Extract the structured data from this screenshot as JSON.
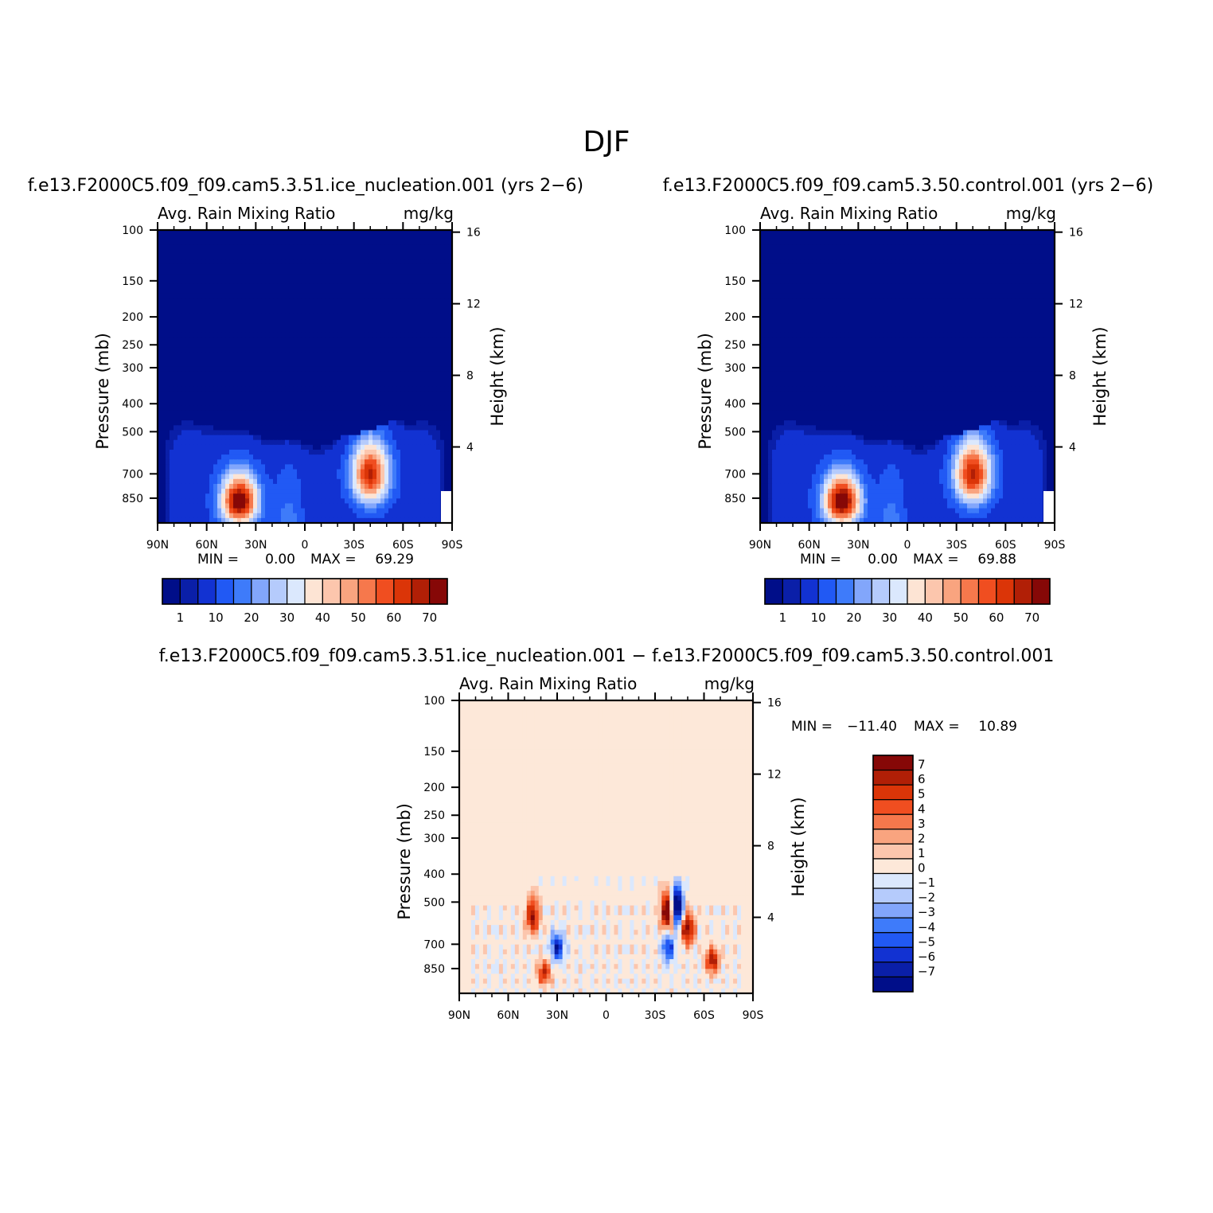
{
  "figure": {
    "title": "DJF"
  },
  "palettes": {
    "abs": [
      "#000e89",
      "#0a1fa8",
      "#1232d2",
      "#2159f4",
      "#3e7bfa",
      "#82a6fb",
      "#b5cbfc",
      "#dbe8fd",
      "#fde4d4",
      "#fcc6ad",
      "#f9a47f",
      "#f6784c",
      "#f04e20",
      "#db3508",
      "#b11f06",
      "#860807"
    ],
    "diff": [
      "#000e89",
      "#0a1fa8",
      "#1232d2",
      "#2159f4",
      "#3e7bfa",
      "#82a6fb",
      "#b5cbfc",
      "#dbe8fd",
      "#fde8d9",
      "#fcc6ad",
      "#f9a47f",
      "#f6784c",
      "#f04e20",
      "#db3508",
      "#b11f06",
      "#860807"
    ]
  },
  "chart_data": [
    {
      "type": "heatmap",
      "id": "p1",
      "run_title": "f.e13.F2000C5.f09_f09.cam5.3.51.ice_nucleation.001 (yrs 2−6)",
      "left_label": "Avg. Rain Mixing Ratio",
      "right_label": "mg/kg",
      "ylabel": "Pressure (mb)",
      "y2label": "Height (km)",
      "x_ticks": [
        "90N",
        "60N",
        "30N",
        "0",
        "30S",
        "60S",
        "90S"
      ],
      "y_ticks": [
        "100",
        "150",
        "200",
        "250",
        "300",
        "400",
        "500",
        "700",
        "850"
      ],
      "y2_ticks": [
        "16",
        "12",
        "8",
        "4"
      ],
      "stats": {
        "min_label": "MIN =",
        "min_value": "0.00",
        "max_label": "MAX =",
        "max_value": "69.29"
      },
      "colorbar": {
        "orientation": "horizontal",
        "labels": [
          "1",
          "10",
          "20",
          "30",
          "40",
          "50",
          "60",
          "70"
        ]
      },
      "peaks": [
        {
          "lat": 40,
          "pressure": 870,
          "value": 69.29
        },
        {
          "lat": -40,
          "pressure": 700,
          "value": 58
        }
      ]
    },
    {
      "type": "heatmap",
      "id": "p2",
      "run_title": "f.e13.F2000C5.f09_f09.cam5.3.50.control.001 (yrs 2−6)",
      "left_label": "Avg. Rain Mixing Ratio",
      "right_label": "mg/kg",
      "ylabel": "Pressure (mb)",
      "y2label": "Height (km)",
      "x_ticks": [
        "90N",
        "60N",
        "30N",
        "0",
        "30S",
        "60S",
        "90S"
      ],
      "y_ticks": [
        "100",
        "150",
        "200",
        "250",
        "300",
        "400",
        "500",
        "700",
        "850"
      ],
      "y2_ticks": [
        "16",
        "12",
        "8",
        "4"
      ],
      "stats": {
        "min_label": "MIN =",
        "min_value": "0.00",
        "max_label": "MAX =",
        "max_value": "69.88"
      },
      "colorbar": {
        "orientation": "horizontal",
        "labels": [
          "1",
          "10",
          "20",
          "30",
          "40",
          "50",
          "60",
          "70"
        ]
      },
      "peaks": [
        {
          "lat": 40,
          "pressure": 870,
          "value": 69.88
        },
        {
          "lat": -40,
          "pressure": 700,
          "value": 60
        }
      ]
    },
    {
      "type": "heatmap",
      "id": "p3",
      "run_title": "f.e13.F2000C5.f09_f09.cam5.3.51.ice_nucleation.001 − f.e13.F2000C5.f09_f09.cam5.3.50.control.001",
      "left_label": "Avg. Rain Mixing Ratio",
      "right_label": "mg/kg",
      "ylabel": "Pressure (mb)",
      "y2label": "Height (km)",
      "x_ticks": [
        "90N",
        "60N",
        "30N",
        "0",
        "30S",
        "60S",
        "90S"
      ],
      "y_ticks": [
        "100",
        "150",
        "200",
        "250",
        "300",
        "400",
        "500",
        "700",
        "850"
      ],
      "y2_ticks": [
        "16",
        "12",
        "8",
        "4"
      ],
      "stats": {
        "min_label": "MIN =",
        "min_value": "−11.40",
        "max_label": "MAX =",
        "max_value": "10.89"
      },
      "colorbar": {
        "orientation": "vertical",
        "labels": [
          "7",
          "6",
          "5",
          "4",
          "3",
          "2",
          "1",
          "0",
          "−1",
          "−2",
          "−3",
          "−4",
          "−5",
          "−6",
          "−7"
        ]
      },
      "peaks": [
        {
          "lat": 45,
          "pressure": 560,
          "value": 7
        },
        {
          "lat": 30,
          "pressure": 720,
          "value": -7
        },
        {
          "lat": 38,
          "pressure": 880,
          "value": 6
        },
        {
          "lat": -43,
          "pressure": 520,
          "value": -11.4
        },
        {
          "lat": -38,
          "pressure": 540,
          "value": 10.89
        },
        {
          "lat": -50,
          "pressure": 620,
          "value": 8
        },
        {
          "lat": -38,
          "pressure": 720,
          "value": -6
        },
        {
          "lat": -65,
          "pressure": 800,
          "value": 7
        }
      ]
    }
  ]
}
